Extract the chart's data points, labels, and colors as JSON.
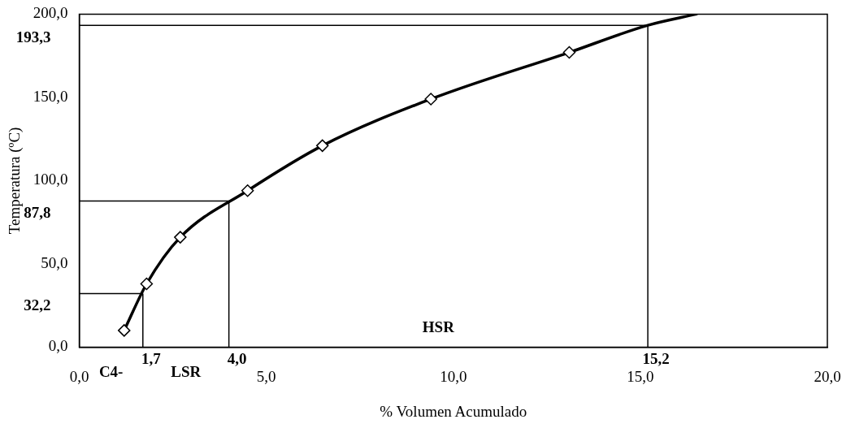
{
  "chart_data": {
    "type": "line",
    "xlabel": "% Volumen Acumulado",
    "ylabel": "Temperatura (ºC)",
    "series": [
      {
        "color": "#000000",
        "marker": "diamond",
        "x": [
          1.2,
          1.8,
          2.7,
          4.5,
          6.5,
          9.4,
          13.1
        ],
        "values": [
          10,
          38,
          66,
          94,
          121,
          149,
          177
        ]
      },
      {
        "color": "#000000",
        "marker": "none",
        "x": [
          13.1,
          15.2,
          16.5
        ],
        "values": [
          177,
          193.3,
          200
        ]
      }
    ],
    "xlim": [
      0,
      20
    ],
    "ylim": [
      0,
      200
    ],
    "xticks": [
      {
        "value": 0,
        "label": "0,0"
      },
      {
        "value": 5,
        "label": "5,0"
      },
      {
        "value": 10,
        "label": "10,0"
      },
      {
        "value": 15,
        "label": "15,0"
      },
      {
        "value": 20,
        "label": "20,0"
      }
    ],
    "yticks": [
      {
        "value": 0,
        "label": "0,0"
      },
      {
        "value": 50,
        "label": "50,0"
      },
      {
        "value": 100,
        "label": "100,0"
      },
      {
        "value": 150,
        "label": "150,0"
      },
      {
        "value": 200,
        "label": "200,0"
      }
    ],
    "ref_lines": [
      {
        "axis": "x",
        "value": 1.7,
        "label": "1,7"
      },
      {
        "axis": "y",
        "value": 32.2,
        "label": "32,2"
      },
      {
        "axis": "x",
        "value": 4.0,
        "label": "4,0"
      },
      {
        "axis": "y",
        "value": 87.8,
        "label": "87,8"
      },
      {
        "axis": "x",
        "value": 15.2,
        "label": "15,2"
      },
      {
        "axis": "y",
        "value": 193.3,
        "label": "193,3"
      }
    ],
    "annotations": [
      "C4-",
      "LSR",
      "HSR"
    ],
    "grid": false,
    "legend": false,
    "line_style": "solid"
  }
}
